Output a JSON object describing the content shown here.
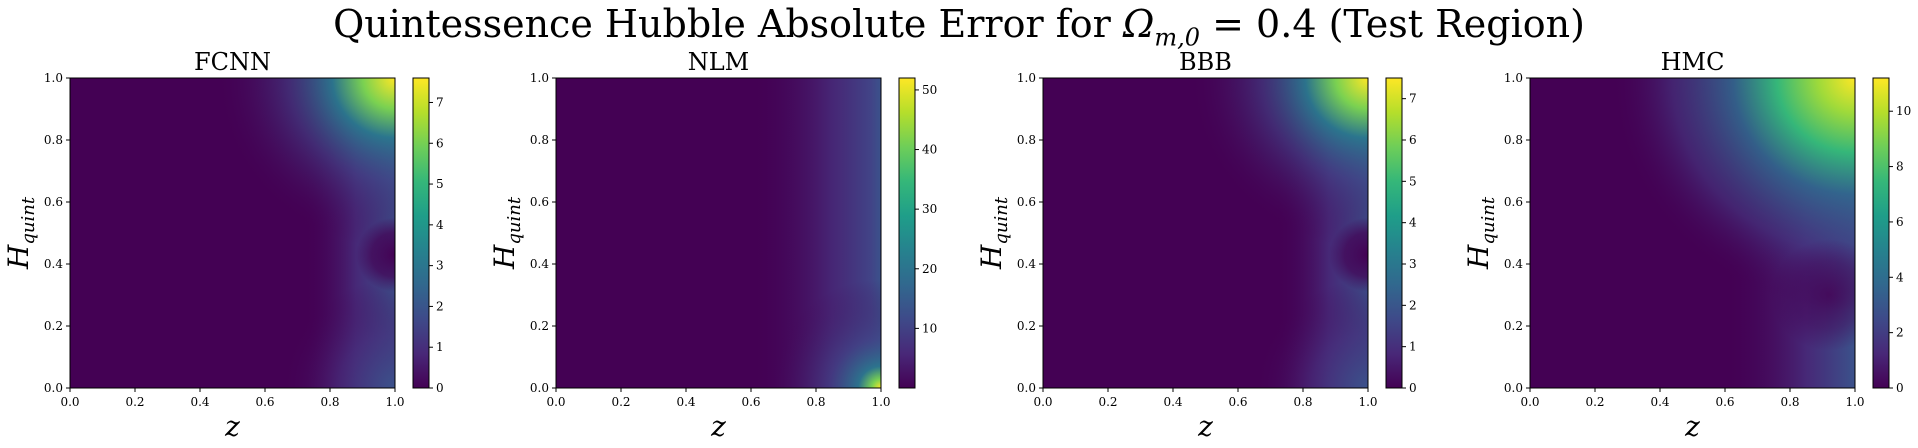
{
  "figure": {
    "title_prefix": "Quintessence Hubble Absolute Error for ",
    "title_symbol": "Ω",
    "title_subscript": "m,0",
    "title_value": " = 0.4",
    "title_suffix": " (Test Region)"
  },
  "chart_data": [
    {
      "type": "heatmap",
      "title": "FCNN",
      "xlabel": "z",
      "ylabel": "H_quint",
      "xlim": [
        0,
        1
      ],
      "ylim": [
        0,
        1
      ],
      "xticks": [
        "0.0",
        "0.2",
        "0.4",
        "0.6",
        "0.8",
        "1.0"
      ],
      "yticks": [
        "0.0",
        "0.2",
        "0.4",
        "0.6",
        "0.8",
        "1.0"
      ],
      "colorbar": {
        "min": 0,
        "max": 7.6,
        "ticks": [
          0,
          1,
          2,
          3,
          4,
          5,
          6,
          7
        ],
        "colormap": "viridis"
      },
      "max_value_location": "top-right",
      "pattern": "error near z=1, minimum near H_quint=0.55"
    },
    {
      "type": "heatmap",
      "title": "NLM",
      "xlabel": "z",
      "ylabel": "H_quint",
      "xlim": [
        0,
        1
      ],
      "ylim": [
        0,
        1
      ],
      "xticks": [
        "0.0",
        "0.2",
        "0.4",
        "0.6",
        "0.8",
        "1.0"
      ],
      "yticks": [
        "0.0",
        "0.2",
        "0.4",
        "0.6",
        "0.8",
        "1.0"
      ],
      "colorbar": {
        "min": 0,
        "max": 52,
        "ticks": [
          10,
          20,
          30,
          40,
          50
        ],
        "colormap": "viridis"
      },
      "max_value_location": "bottom-right",
      "pattern": "error concentrated at z=1, low H_quint"
    },
    {
      "type": "heatmap",
      "title": "BBB",
      "xlabel": "z",
      "ylabel": "H_quint",
      "xlim": [
        0,
        1
      ],
      "ylim": [
        0,
        1
      ],
      "xticks": [
        "0.0",
        "0.2",
        "0.4",
        "0.6",
        "0.8",
        "1.0"
      ],
      "yticks": [
        "0.0",
        "0.2",
        "0.4",
        "0.6",
        "0.8",
        "1.0"
      ],
      "colorbar": {
        "min": 0,
        "max": 7.5,
        "ticks": [
          0,
          1,
          2,
          3,
          4,
          5,
          6,
          7
        ],
        "colormap": "viridis"
      },
      "max_value_location": "top-right",
      "pattern": "error near z=1, minimum near H_quint=0.55"
    },
    {
      "type": "heatmap",
      "title": "HMC",
      "xlabel": "z",
      "ylabel": "H_quint",
      "xlim": [
        0,
        1
      ],
      "ylim": [
        0,
        1
      ],
      "xticks": [
        "0.0",
        "0.2",
        "0.4",
        "0.6",
        "0.8",
        "1.0"
      ],
      "yticks": [
        "0.0",
        "0.2",
        "0.4",
        "0.6",
        "0.8",
        "1.0"
      ],
      "colorbar": {
        "min": 0,
        "max": 11.2,
        "ticks": [
          0,
          2,
          4,
          6,
          8,
          10
        ],
        "colormap": "viridis"
      },
      "max_value_location": "top-right",
      "pattern": "error grows toward z=1 and high H_quint"
    }
  ]
}
